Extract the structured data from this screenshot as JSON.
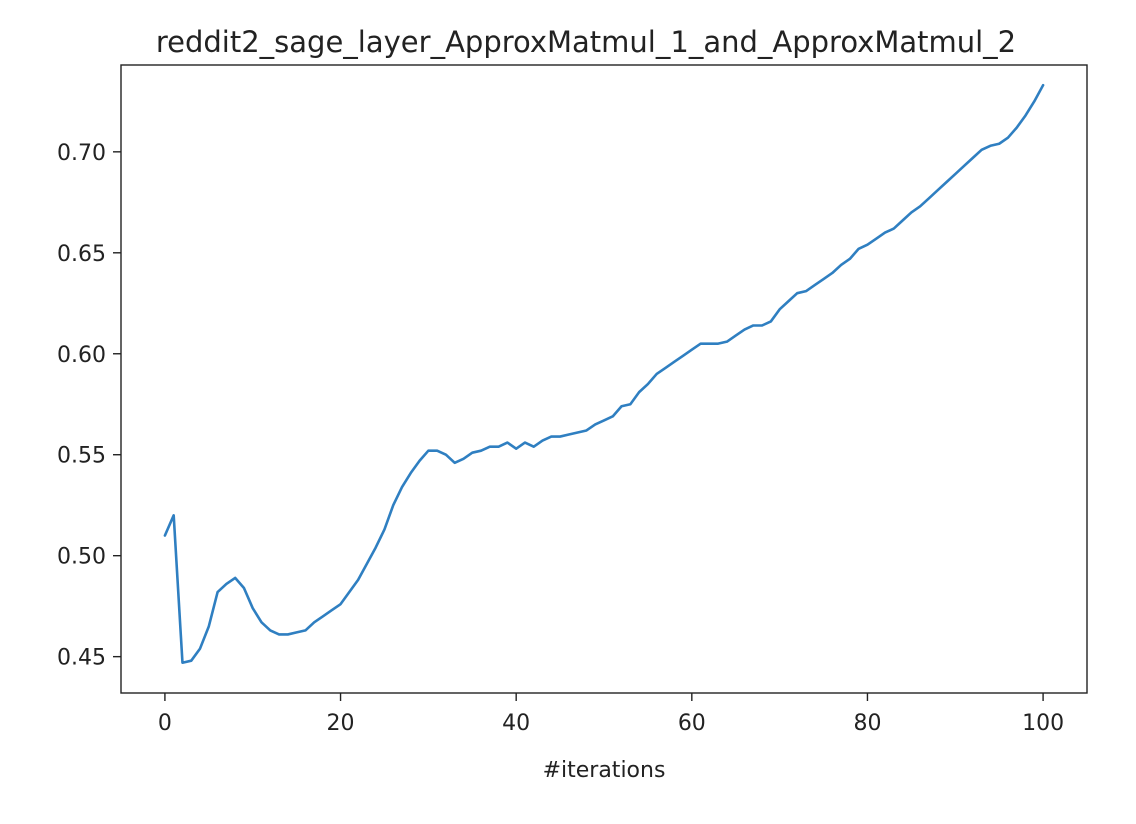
{
  "chart_data": {
    "type": "line",
    "title": "reddit2_sage_layer_ApproxMatmul_1_and_ApproxMatmul_2",
    "xlabel": "#iterations",
    "ylabel": "",
    "xlim": [
      -5,
      105
    ],
    "ylim": [
      0.432,
      0.743
    ],
    "xticks": [
      0,
      20,
      40,
      60,
      80,
      100
    ],
    "xtick_labels": [
      "0",
      "20",
      "40",
      "60",
      "80",
      "100"
    ],
    "yticks": [
      0.45,
      0.5,
      0.55,
      0.6,
      0.65,
      0.7
    ],
    "ytick_labels": [
      "0.45",
      "0.50",
      "0.55",
      "0.60",
      "0.65",
      "0.70"
    ],
    "grid": false,
    "legend": "none",
    "series": [
      {
        "color": "#2f7fc1",
        "x": [
          0,
          1,
          2,
          3,
          4,
          5,
          6,
          7,
          8,
          9,
          10,
          11,
          12,
          13,
          14,
          15,
          16,
          17,
          18,
          19,
          20,
          21,
          22,
          23,
          24,
          25,
          26,
          27,
          28,
          29,
          30,
          31,
          32,
          33,
          34,
          35,
          36,
          37,
          38,
          39,
          40,
          41,
          42,
          43,
          44,
          45,
          46,
          47,
          48,
          49,
          50,
          51,
          52,
          53,
          54,
          55,
          56,
          57,
          58,
          59,
          60,
          61,
          62,
          63,
          64,
          65,
          66,
          67,
          68,
          69,
          70,
          71,
          72,
          73,
          74,
          75,
          76,
          77,
          78,
          79,
          80,
          81,
          82,
          83,
          84,
          85,
          86,
          87,
          88,
          89,
          90,
          91,
          92,
          93,
          94,
          95,
          96,
          97,
          98,
          99,
          100
        ],
        "y": [
          0.51,
          0.52,
          0.447,
          0.448,
          0.454,
          0.465,
          0.482,
          0.486,
          0.489,
          0.484,
          0.474,
          0.467,
          0.463,
          0.461,
          0.461,
          0.462,
          0.463,
          0.467,
          0.47,
          0.473,
          0.476,
          0.482,
          0.488,
          0.496,
          0.504,
          0.513,
          0.525,
          0.534,
          0.541,
          0.547,
          0.552,
          0.552,
          0.55,
          0.546,
          0.548,
          0.551,
          0.552,
          0.554,
          0.554,
          0.556,
          0.553,
          0.556,
          0.554,
          0.557,
          0.559,
          0.559,
          0.56,
          0.561,
          0.562,
          0.565,
          0.567,
          0.569,
          0.574,
          0.575,
          0.581,
          0.585,
          0.59,
          0.593,
          0.596,
          0.599,
          0.602,
          0.605,
          0.605,
          0.605,
          0.606,
          0.609,
          0.612,
          0.614,
          0.614,
          0.616,
          0.622,
          0.626,
          0.63,
          0.631,
          0.634,
          0.637,
          0.64,
          0.644,
          0.647,
          0.652,
          0.654,
          0.657,
          0.66,
          0.662,
          0.666,
          0.67,
          0.673,
          0.677,
          0.681,
          0.685,
          0.689,
          0.693,
          0.697,
          0.701,
          0.703,
          0.704,
          0.707,
          0.712,
          0.718,
          0.725,
          0.733
        ]
      }
    ]
  }
}
